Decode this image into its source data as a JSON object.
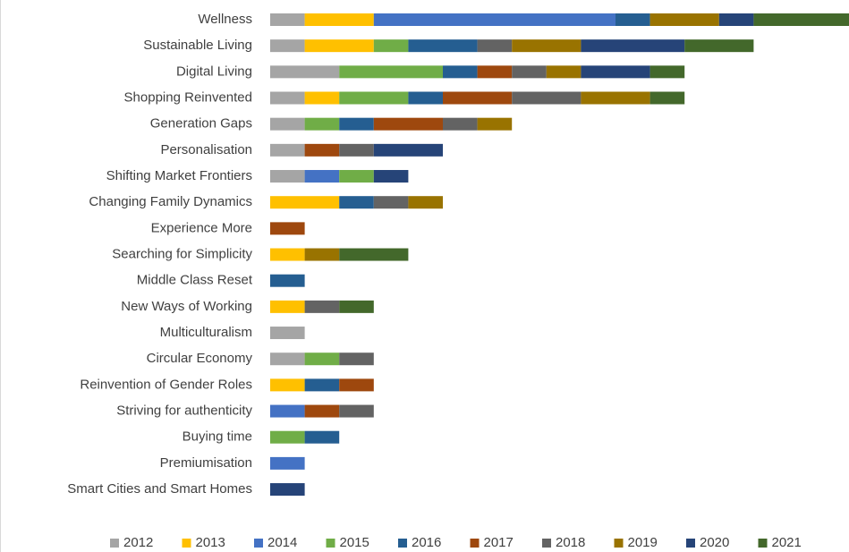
{
  "chart_data": {
    "type": "stacked-bar-horizontal",
    "categories": [
      "Wellness",
      "Sustainable Living",
      "Digital Living",
      "Shopping Reinvented",
      "Generation Gaps",
      "Personalisation",
      "Shifting Market Frontiers",
      "Changing Family Dynamics",
      "Experience More",
      "Searching for Simplicity",
      "Middle Class Reset",
      "New Ways of Working",
      "Multiculturalism",
      "Circular Economy",
      "Reinvention of Gender Roles",
      "Striving for authenticity",
      "Buying time",
      "Premiumisation",
      "Smart Cities and Smart Homes"
    ],
    "series": [
      {
        "name": "2012",
        "color": "#a5a5a5",
        "values": [
          1,
          1,
          2,
          1,
          1,
          1,
          1,
          0,
          0,
          0,
          0,
          0,
          1,
          1,
          0,
          0,
          0,
          0,
          0
        ]
      },
      {
        "name": "2013",
        "color": "#ffc000",
        "values": [
          2,
          2,
          0,
          1,
          0,
          0,
          0,
          2,
          0,
          1,
          0,
          1,
          0,
          0,
          1,
          0,
          0,
          0,
          0
        ]
      },
      {
        "name": "2014",
        "color": "#4472c4",
        "values": [
          7,
          0,
          0,
          0,
          0,
          0,
          1,
          0,
          0,
          0,
          0,
          0,
          0,
          0,
          0,
          1,
          0,
          1,
          0
        ]
      },
      {
        "name": "2015",
        "color": "#70ad47",
        "values": [
          0,
          1,
          3,
          2,
          1,
          0,
          1,
          0,
          0,
          0,
          0,
          0,
          0,
          1,
          0,
          0,
          1,
          0,
          0
        ]
      },
      {
        "name": "2016",
        "color": "#255e91",
        "values": [
          1,
          2,
          1,
          1,
          1,
          0,
          0,
          1,
          0,
          0,
          1,
          0,
          0,
          0,
          1,
          0,
          1,
          0,
          0
        ]
      },
      {
        "name": "2017",
        "color": "#9e480e",
        "values": [
          0,
          0,
          1,
          2,
          2,
          1,
          0,
          0,
          1,
          0,
          0,
          0,
          0,
          0,
          1,
          1,
          0,
          0,
          0
        ]
      },
      {
        "name": "2018",
        "color": "#636363",
        "values": [
          0,
          1,
          1,
          2,
          1,
          1,
          0,
          1,
          0,
          0,
          0,
          1,
          0,
          1,
          0,
          1,
          0,
          0,
          0
        ]
      },
      {
        "name": "2019",
        "color": "#997300",
        "values": [
          2,
          2,
          1,
          2,
          1,
          0,
          0,
          1,
          0,
          1,
          0,
          0,
          0,
          0,
          0,
          0,
          0,
          0,
          0
        ]
      },
      {
        "name": "2020",
        "color": "#264478",
        "values": [
          1,
          3,
          2,
          0,
          0,
          2,
          1,
          0,
          0,
          0,
          0,
          0,
          0,
          0,
          0,
          0,
          0,
          0,
          1
        ]
      },
      {
        "name": "2021",
        "color": "#43682b",
        "values": [
          3,
          2,
          1,
          1,
          0,
          0,
          0,
          0,
          0,
          2,
          0,
          1,
          0,
          0,
          0,
          0,
          0,
          0,
          0
        ]
      }
    ]
  }
}
